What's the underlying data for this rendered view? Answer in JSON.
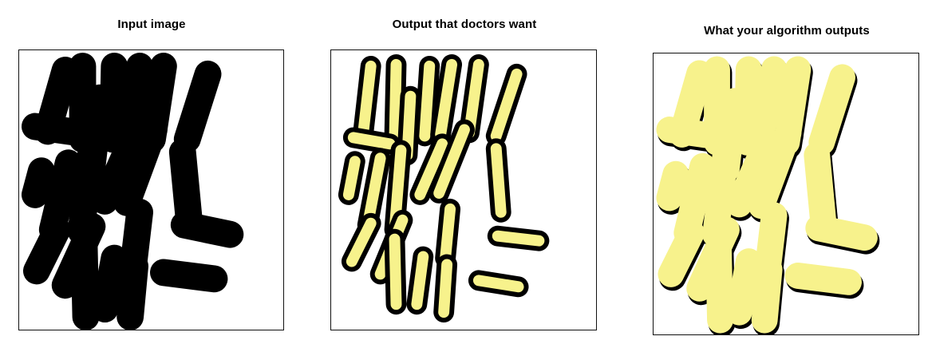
{
  "panels": {
    "input": {
      "title": "Input image"
    },
    "desired": {
      "title": "Output that doctors want"
    },
    "algorithm": {
      "title": "What your algorithm outputs"
    }
  },
  "colors": {
    "background": "#ffffff",
    "cell_outline": "#000000",
    "highlight": "#f7f28c",
    "frame": "#111111"
  }
}
